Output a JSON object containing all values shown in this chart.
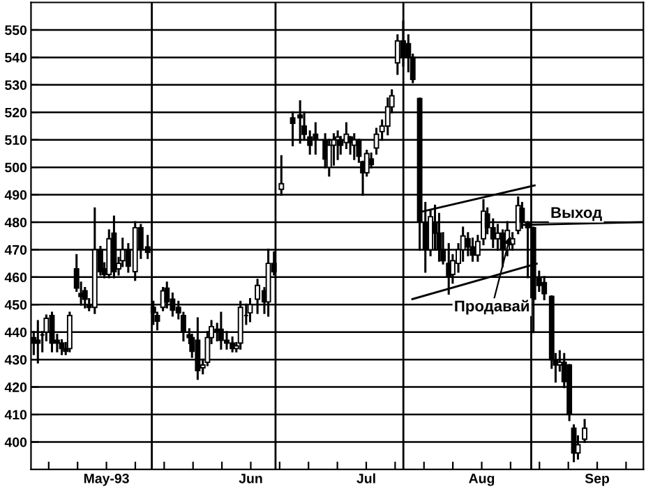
{
  "chart_data": {
    "type": "candlestick",
    "x": [
      "1993-05-03T09:00",
      "1993-05-04T09:00",
      "1993-05-05T11:00",
      "1993-05-06T10:00",
      "1993-05-07T19:00",
      "1993-05-09T01:00",
      "1993-05-10T04:00",
      "1993-05-11T03:00",
      "1993-05-12T02:00",
      "1993-05-13T18:00",
      "1993-05-14T20:00",
      "1993-05-15T19:00",
      "1993-05-16T19:00",
      "1993-05-18T04:00",
      "1993-05-19T13:00",
      "1993-05-20T12:00",
      "1993-05-21T15:00",
      "1993-05-22T20:00",
      "1993-05-23T23:00",
      "1993-05-24T22:00",
      "1993-05-26T07:00",
      "1993-05-27T23:00",
      "1993-05-29T08:00",
      "1993-05-31T00:00",
      "1993-06-01T09:00",
      "1993-06-02T08:00",
      "1993-06-03T17:00",
      "1993-06-04T16:00",
      "1993-06-06T01:00",
      "1993-06-07T11:00",
      "1993-06-08T16:00",
      "1993-06-10T02:00",
      "1993-06-10T18:00",
      "1993-06-12T03:00",
      "1993-06-13T09:00",
      "1993-06-14T12:00",
      "1993-06-15T11:00",
      "1993-06-16T20:00",
      "1993-06-17T19:00",
      "1993-06-19T04:00",
      "1993-06-20T13:00",
      "1993-06-21T12:00",
      "1993-06-22T12:00",
      "1993-06-23T21:00",
      "1993-06-24T20:00",
      "1993-06-26T15:00",
      "1993-06-28T07:00",
      "1993-06-29T06:00",
      "1993-06-30T15:00",
      "1993-07-02T10:00",
      "1993-07-05T04:00",
      "1993-07-06T23:00",
      "1993-07-07T23:00",
      "1993-07-09T08:00",
      "1993-07-10T17:00",
      "1993-07-13T01:00",
      "1993-07-14T00:00",
      "1993-07-15T03:00",
      "1993-07-16T02:00",
      "1993-07-16T19:00",
      "1993-07-18T04:00",
      "1993-07-19T03:00",
      "1993-07-20T02:00",
      "1993-07-21T05:00",
      "1993-07-22T04:00",
      "1993-07-23T03:00",
      "1993-07-24T05:00",
      "1993-07-25T11:00",
      "1993-07-26T20:00",
      "1993-07-28T05:00",
      "1993-07-29T05:00",
      "1993-07-30T14:00",
      "1993-07-31T23:00",
      "1993-08-02T05:00",
      "1993-08-03T07:00",
      "1993-08-04T23:00",
      "1993-08-06T08:00",
      "1993-08-07T14:00",
      "1993-08-08T16:00",
      "1993-08-09T16:00",
      "1993-08-10T15:00",
      "1993-08-12T00:00",
      "1993-08-12T23:00",
      "1993-08-14T08:00",
      "1993-08-15T11:00",
      "1993-08-16T16:00",
      "1993-08-17T19:00",
      "1993-08-19T01:00",
      "1993-08-20T10:00",
      "1993-08-21T09:00",
      "1993-08-22T18:00",
      "1993-08-23T21:00",
      "1993-08-25T02:00",
      "1993-08-26T05:00",
      "1993-08-27T11:00",
      "1993-08-28T20:00",
      "1993-08-29T19:00",
      "1993-08-31T04:00",
      "1993-09-01T13:00",
      "1993-09-02T22:00",
      "1993-09-04T04:00",
      "1993-09-05T23:00",
      "1993-09-06T22:00",
      "1993-09-07T22:00",
      "1993-09-09T00:00",
      "1993-09-10T06:00",
      "1993-09-11T08:00",
      "1993-09-12T08:00",
      "1993-09-13T23:00"
    ],
    "ohlc": [
      [
        438,
        440,
        432,
        436
      ],
      [
        437,
        444,
        429,
        436
      ],
      [
        439,
        440,
        433,
        439
      ],
      [
        440,
        446,
        437,
        445
      ],
      [
        446,
        447,
        433,
        436
      ],
      [
        437,
        439,
        433,
        436
      ],
      [
        436,
        437,
        432,
        434
      ],
      [
        434,
        436,
        432,
        433
      ],
      [
        434,
        447,
        433,
        446
      ],
      [
        463,
        468,
        455,
        456
      ],
      [
        454,
        458,
        450,
        453
      ],
      [
        455,
        456,
        449,
        452
      ],
      [
        450,
        452,
        448,
        449
      ],
      [
        449,
        485,
        447,
        470
      ],
      [
        470,
        471,
        461,
        462
      ],
      [
        463,
        465,
        460,
        461
      ],
      [
        461,
        477,
        460,
        474
      ],
      [
        476,
        482,
        460,
        462
      ],
      [
        463,
        467,
        461,
        465
      ],
      [
        466,
        474,
        464,
        470
      ],
      [
        470,
        472,
        462,
        464
      ],
      [
        462,
        480,
        459,
        478
      ],
      [
        478,
        479,
        467,
        470
      ],
      [
        471,
        475,
        467,
        469
      ],
      [
        449,
        451,
        443,
        447
      ],
      [
        446,
        447,
        441,
        444
      ],
      [
        449,
        456,
        448,
        455
      ],
      [
        456,
        458,
        449,
        451
      ],
      [
        452,
        454,
        446,
        448
      ],
      [
        449,
        451,
        445,
        447
      ],
      [
        446,
        447,
        437,
        440
      ],
      [
        439,
        441,
        436,
        438
      ],
      [
        438,
        439,
        431,
        433
      ],
      [
        437,
        445,
        423,
        426
      ],
      [
        427,
        430,
        425,
        428
      ],
      [
        429,
        440,
        428,
        438
      ],
      [
        438,
        444,
        436,
        442
      ],
      [
        441,
        443,
        437,
        440
      ],
      [
        441,
        447,
        434,
        437
      ],
      [
        437,
        440,
        434,
        436
      ],
      [
        436,
        438,
        433,
        434
      ],
      [
        434,
        436,
        433,
        435
      ],
      [
        436,
        451,
        434,
        449
      ],
      [
        446,
        450,
        443,
        446
      ],
      [
        447,
        452,
        444,
        450
      ],
      [
        452,
        459,
        447,
        457
      ],
      [
        455,
        456,
        447,
        451
      ],
      [
        451,
        470,
        446,
        465
      ],
      [
        465,
        469,
        461,
        462
      ],
      [
        492,
        504,
        490,
        494
      ],
      [
        518,
        520,
        508,
        516
      ],
      [
        519,
        524,
        509,
        518
      ],
      [
        515,
        520,
        510,
        512
      ],
      [
        511,
        513,
        505,
        508
      ],
      [
        512,
        516,
        505,
        510
      ],
      [
        510,
        512,
        500,
        503
      ],
      [
        500,
        510,
        497,
        508
      ],
      [
        508,
        512,
        501,
        510
      ],
      [
        510,
        513,
        503,
        511
      ],
      [
        510,
        511,
        505,
        508
      ],
      [
        509,
        516,
        507,
        512
      ],
      [
        511,
        511,
        505,
        509
      ],
      [
        508,
        512,
        503,
        510
      ],
      [
        510,
        510,
        502,
        504
      ],
      [
        502,
        502,
        490,
        498
      ],
      [
        498,
        506,
        497,
        505
      ],
      [
        503,
        505,
        500,
        501
      ],
      [
        507,
        514,
        505,
        512
      ],
      [
        513,
        517,
        510,
        515
      ],
      [
        515,
        525,
        512,
        522
      ],
      [
        522,
        528,
        520,
        526
      ],
      [
        538,
        548,
        534,
        546
      ],
      [
        546,
        553,
        537,
        540
      ],
      [
        545,
        548,
        535,
        540
      ],
      [
        540,
        541,
        531,
        532
      ],
      [
        525,
        525,
        470,
        480
      ],
      [
        480,
        487,
        462,
        470
      ],
      [
        470,
        484,
        468,
        482
      ],
      [
        480,
        486,
        470,
        476
      ],
      [
        476,
        483,
        466,
        470
      ],
      [
        470,
        476,
        465,
        466
      ],
      [
        465,
        472,
        454,
        460
      ],
      [
        461,
        468,
        458,
        466
      ],
      [
        465,
        472,
        462,
        470
      ],
      [
        470,
        478,
        466,
        475
      ],
      [
        474,
        476,
        468,
        471
      ],
      [
        471,
        474,
        466,
        468
      ],
      [
        468,
        475,
        466,
        473
      ],
      [
        474,
        488,
        472,
        484
      ],
      [
        483,
        485,
        476,
        478
      ],
      [
        478,
        481,
        471,
        474
      ],
      [
        474,
        479,
        470,
        476
      ],
      [
        476,
        477,
        464,
        470
      ],
      [
        470,
        480,
        468,
        477
      ],
      [
        472,
        476,
        470,
        474
      ],
      [
        477,
        489,
        476,
        486
      ],
      [
        485,
        487,
        478,
        480
      ],
      [
        480,
        480,
        460,
        478
      ],
      [
        478,
        478,
        440,
        452
      ],
      [
        460,
        462,
        455,
        457
      ],
      [
        458,
        460,
        452,
        454
      ],
      [
        453,
        453,
        427,
        430
      ],
      [
        430,
        432,
        422,
        428
      ],
      [
        428,
        433,
        426,
        429
      ],
      [
        429,
        432,
        420,
        422
      ],
      [
        428,
        428,
        408,
        410
      ],
      [
        405,
        406,
        393,
        396
      ],
      [
        396,
        402,
        394,
        399
      ],
      [
        401,
        408,
        400,
        405
      ]
    ],
    "series": [
      {
        "type": "line",
        "x": [
          "1993-08-05T15:00",
          "1993-09-01T20:00"
        ],
        "values": [
          483.9,
          493.4
        ],
        "color": "#000000"
      },
      {
        "type": "line",
        "x": [
          "1993-08-03T04:00",
          "1993-09-02T08:00"
        ],
        "values": [
          452,
          464.9
        ],
        "color": "#000000"
      },
      {
        "type": "line",
        "x": [
          "1993-08-30T02:00",
          "1993-09-28T01:00"
        ],
        "values": [
          479,
          480
        ],
        "color": "#000000"
      }
    ],
    "color": "#000000",
    "xlim": [
      "1993-05-02T17:00",
      "1993-09-28T05:00"
    ],
    "xticks": [
      {
        "value": "1993-05-07",
        "label": null
      },
      {
        "value": "1993-05-14",
        "label": null
      },
      {
        "value": "1993-05-21",
        "label": "May-93"
      },
      {
        "value": "1993-05-28",
        "label": null
      },
      {
        "value": "1993-06-04",
        "label": null
      },
      {
        "value": "1993-06-11",
        "label": null
      },
      {
        "value": "1993-06-18",
        "label": null
      },
      {
        "value": "1993-06-25",
        "label": "Jun"
      },
      {
        "value": "1993-07-02",
        "label": null
      },
      {
        "value": "1993-07-09",
        "label": null
      },
      {
        "value": "1993-07-16",
        "label": null
      },
      {
        "value": "1993-07-23",
        "label": "Jul"
      },
      {
        "value": "1993-07-30",
        "label": null
      },
      {
        "value": "1993-08-06",
        "label": null
      },
      {
        "value": "1993-08-13",
        "label": null
      },
      {
        "value": "1993-08-20",
        "label": "Aug"
      },
      {
        "value": "1993-08-27",
        "label": null
      },
      {
        "value": "1993-09-03",
        "label": null
      },
      {
        "value": "1993-09-10",
        "label": null
      },
      {
        "value": "1993-09-17",
        "label": "Sep"
      },
      {
        "value": "1993-09-24",
        "label": null
      }
    ],
    "ylim": [
      390,
      560
    ],
    "yticks": [
      400,
      410,
      420,
      430,
      440,
      450,
      460,
      470,
      480,
      490,
      500,
      510,
      520,
      530,
      540,
      550
    ],
    "grid": "y",
    "ref_lines": [
      {
        "axis": "x",
        "value": "1993-06-01"
      },
      {
        "axis": "x",
        "value": "1993-07-01"
      },
      {
        "axis": "x",
        "value": "1993-08-01"
      },
      {
        "axis": "x",
        "value": "1993-09-01"
      }
    ],
    "annotations": [
      {
        "text": "Выход",
        "x": "1993-08-30T02:00",
        "y": 479
      },
      {
        "text": "Продавай",
        "x": "1993-08-26T22:00",
        "y": 475
      }
    ]
  }
}
